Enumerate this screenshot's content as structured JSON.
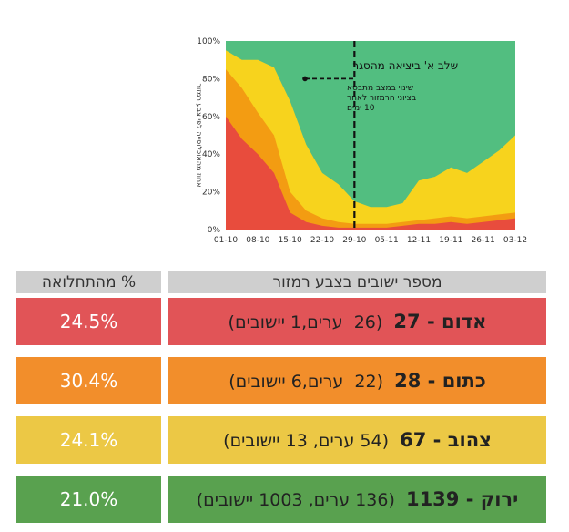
{
  "chart_data": {
    "type": "area",
    "stacking": "percent",
    "x_tick_labels": [
      "01-10",
      "08-10",
      "15-10",
      "22-10",
      "29-10",
      "05-11",
      "12-11",
      "19-11",
      "26-11",
      "03-12"
    ],
    "x": [
      "01-10",
      "04-10",
      "08-10",
      "11-10",
      "15-10",
      "18-10",
      "22-10",
      "25-10",
      "29-10",
      "01-11",
      "05-11",
      "08-11",
      "12-11",
      "15-11",
      "19-11",
      "22-11",
      "26-11",
      "29-11",
      "03-12"
    ],
    "y_tick_labels": [
      "0%",
      "20%",
      "40%",
      "60%",
      "80%",
      "100%"
    ],
    "ylim": [
      0,
      100
    ],
    "ylabel": "אחוז מהאוכלוסייה לפי צבע רמזור",
    "series": [
      {
        "color": "#e84c3d",
        "values": [
          60,
          48,
          40,
          30,
          9,
          4,
          2,
          1,
          1,
          1,
          1,
          2,
          3,
          3,
          4,
          3,
          4,
          5,
          6
        ]
      },
      {
        "color": "#f39c12",
        "values": [
          85,
          75,
          62,
          50,
          20,
          10,
          6,
          4,
          3,
          3,
          3,
          4,
          5,
          6,
          7,
          6,
          7,
          8,
          9
        ]
      },
      {
        "color": "#f7d31d",
        "values": [
          95,
          90,
          90,
          86,
          68,
          45,
          30,
          24,
          15,
          12,
          12,
          14,
          26,
          28,
          33,
          30,
          36,
          42,
          50
        ]
      },
      {
        "color": "#52be80",
        "values": [
          100,
          100,
          100,
          100,
          100,
          100,
          100,
          100,
          100,
          100,
          100,
          100,
          100,
          100,
          100,
          100,
          100,
          100,
          100
        ]
      }
    ],
    "annotations": {
      "phase_line_x": "29-10",
      "phase_label": "שלב א' ביציאה מהסגר",
      "lag_note": [
        "שינוי במצב מתבטא",
        "בציוני הרמזור לאחר",
        "10 ימים"
      ]
    }
  },
  "table": {
    "header_pct": "% מהתחלואה",
    "header_desc": "מספר ישובים בצבע רמזור",
    "rows": [
      {
        "name": "אדום",
        "count": "27",
        "cities": "26",
        "cities_label": "ערים",
        "settlements": "1",
        "settlements_label": "יישובים",
        "pct": "24.5%",
        "color": "#e15457"
      },
      {
        "name": "כתום",
        "count": "28",
        "cities": "22",
        "cities_label": "ערים",
        "settlements": "6",
        "settlements_label": "יישובים",
        "pct": "30.4%",
        "color": "#f28e2b"
      },
      {
        "name": "צהוב",
        "count": "67",
        "cities": "54",
        "cities_label": "ערים",
        "settlements": "13",
        "settlements_label": "יישובים",
        "pct": "24.1%",
        "color": "#ecc845"
      },
      {
        "name": "ירוק",
        "count": "1139",
        "cities": "136",
        "cities_label": "ערים",
        "settlements": "1003",
        "settlements_label": "יישובים",
        "pct": "21.0%",
        "color": "#59a14f"
      }
    ]
  }
}
